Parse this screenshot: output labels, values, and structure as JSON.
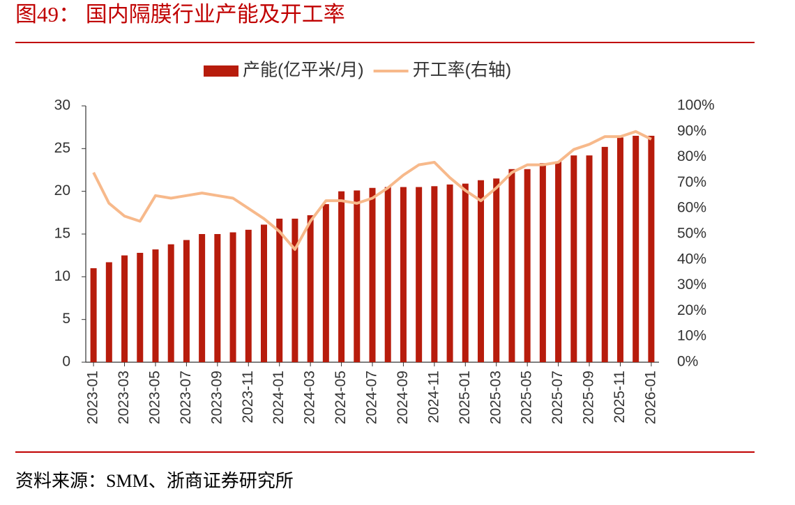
{
  "chart_data": {
    "type": "bar_line",
    "title": "图49：  国内隔膜行业产能及开工率",
    "source": "资料来源：SMM、浙商证券研究所",
    "categories": [
      "2023-01",
      null,
      "2023-03",
      null,
      "2023-05",
      null,
      "2023-07",
      null,
      "2023-09",
      null,
      "2023-11",
      null,
      "2024-01",
      null,
      "2024-03",
      null,
      "2024-05",
      null,
      "2024-07",
      null,
      "2024-09",
      null,
      "2024-11",
      null,
      "2025-01",
      null,
      "2025-03",
      null,
      "2025-05",
      null,
      "2025-07",
      null,
      "2025-09",
      null,
      "2025-11",
      null,
      "2026-01"
    ],
    "series": [
      {
        "name": "产能(亿平米/月)",
        "type": "bar",
        "color": "#b71c0c",
        "values": [
          11,
          11.7,
          12.5,
          12.8,
          13.2,
          13.8,
          14.3,
          15,
          15,
          15.2,
          15.5,
          16.1,
          16.8,
          16.8,
          17.2,
          18.5,
          20,
          20.1,
          20.4,
          20.5,
          20.5,
          20.5,
          20.6,
          20.8,
          20.9,
          21.3,
          21.5,
          22.6,
          22.6,
          23.3,
          23.5,
          24.2,
          24.2,
          25.2,
          26.3,
          26.5,
          26.5
        ]
      },
      {
        "name": "开工率(右轴)",
        "type": "line",
        "axis": "y2",
        "color": "#f7b98b",
        "values": [
          74,
          62,
          57,
          55,
          65,
          64,
          65,
          66,
          65,
          64,
          60,
          56,
          51,
          44,
          55,
          63,
          63,
          62,
          64,
          68,
          73,
          77,
          78,
          72,
          67,
          63,
          68,
          74,
          77,
          77,
          78,
          83,
          85,
          88,
          88,
          90,
          87
        ]
      }
    ],
    "ylim": [
      0,
      30
    ],
    "yticks": [
      0,
      5,
      10,
      15,
      20,
      25,
      30
    ],
    "y2lim": [
      0,
      100
    ],
    "y2ticks": [
      {
        "value": 0,
        "label": "0%"
      },
      {
        "value": 10,
        "label": "10%"
      },
      {
        "value": 20,
        "label": "20%"
      },
      {
        "value": 30,
        "label": "30%"
      },
      {
        "value": 40,
        "label": "40%"
      },
      {
        "value": 50,
        "label": "50%"
      },
      {
        "value": 60,
        "label": "60%"
      },
      {
        "value": 70,
        "label": "70%"
      },
      {
        "value": 80,
        "label": "80%"
      },
      {
        "value": 90,
        "label": "90%"
      },
      {
        "value": 100,
        "label": "100%"
      }
    ],
    "grid": false
  }
}
